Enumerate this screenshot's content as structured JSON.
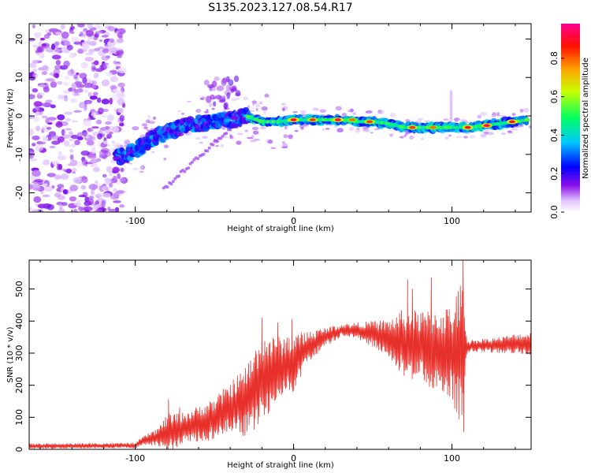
{
  "figure": {
    "title": "S135.2023.127.08.54.R17"
  },
  "chart_data": [
    {
      "type": "heatmap",
      "title": "S135.2023.127.08.54.R17",
      "xlabel": "Height of straight line (km)",
      "ylabel": "Frequency (Hz)",
      "xlim": [
        -167,
        150
      ],
      "ylim": [
        -25,
        24
      ],
      "x_ticks": [
        -100,
        0,
        100
      ],
      "x_tick_labels": [
        "-100",
        "0",
        "100"
      ],
      "y_ticks": [
        -20,
        -10,
        0,
        10,
        20
      ],
      "y_tick_labels": [
        "-20",
        "-10",
        "0",
        "10",
        "20"
      ],
      "colorbar": {
        "label": "Normalized spectral amplitude",
        "ticks": [
          0.0,
          0.2,
          0.4,
          0.6,
          0.8
        ],
        "tick_labels": [
          "0.0",
          "0.2",
          "0.4",
          "0.6",
          "0.8"
        ],
        "range": [
          0,
          0.98
        ],
        "colormap": [
          "#ffffff",
          "#d9b3ff",
          "#7a00e0",
          "#0000ff",
          "#00c8ff",
          "#00ff40",
          "#f0ff00",
          "#ff8000",
          "#ff0000",
          "#ff0080"
        ]
      },
      "ridge": [
        {
          "x": -110,
          "y": -10.5
        },
        {
          "x": -100,
          "y": -9
        },
        {
          "x": -90,
          "y": -6
        },
        {
          "x": -80,
          "y": -4
        },
        {
          "x": -70,
          "y": -3
        },
        {
          "x": -60,
          "y": -2
        },
        {
          "x": -50,
          "y": -1.5
        },
        {
          "x": -40,
          "y": -1
        },
        {
          "x": -30,
          "y": 0
        },
        {
          "x": -20,
          "y": -1.5
        },
        {
          "x": -10,
          "y": -1.5
        },
        {
          "x": 0,
          "y": -1
        },
        {
          "x": 10,
          "y": -1
        },
        {
          "x": 20,
          "y": -1
        },
        {
          "x": 30,
          "y": -1
        },
        {
          "x": 40,
          "y": -1.5
        },
        {
          "x": 50,
          "y": -1.5
        },
        {
          "x": 60,
          "y": -2
        },
        {
          "x": 70,
          "y": -3
        },
        {
          "x": 80,
          "y": -3
        },
        {
          "x": 90,
          "y": -3
        },
        {
          "x": 100,
          "y": -3
        },
        {
          "x": 110,
          "y": -3
        },
        {
          "x": 120,
          "y": -2.5
        },
        {
          "x": 130,
          "y": -2
        },
        {
          "x": 140,
          "y": -1.5
        },
        {
          "x": 148,
          "y": -1
        }
      ],
      "ridge_peaks": [
        {
          "x": 0,
          "y": -1,
          "v": 0.9
        },
        {
          "x": 12,
          "y": -1,
          "v": 0.85
        },
        {
          "x": 28,
          "y": -1,
          "v": 0.9
        },
        {
          "x": 37,
          "y": -1,
          "v": 0.8
        },
        {
          "x": 48,
          "y": -1.5,
          "v": 0.85
        },
        {
          "x": 75,
          "y": -3,
          "v": 0.85
        },
        {
          "x": 88,
          "y": -3,
          "v": 0.8
        },
        {
          "x": 110,
          "y": -3,
          "v": 0.9
        },
        {
          "x": 122,
          "y": -2.5,
          "v": 0.95
        },
        {
          "x": 138,
          "y": -1.5,
          "v": 0.9
        }
      ]
    },
    {
      "type": "line",
      "xlabel": "Height of straight line (km)",
      "ylabel": "SNR (10 * v/v)",
      "xlim": [
        -167,
        150
      ],
      "ylim": [
        0,
        590
      ],
      "x_ticks": [
        -100,
        0,
        100
      ],
      "x_tick_labels": [
        "-100",
        "0",
        "100"
      ],
      "y_ticks": [
        0,
        100,
        200,
        300,
        400,
        500
      ],
      "y_tick_labels": [
        "0",
        "100",
        "200",
        "300",
        "400",
        "500"
      ],
      "color": "#e8302a",
      "envelope": [
        {
          "x": -167,
          "mean": 10,
          "amp": 8
        },
        {
          "x": -100,
          "mean": 12,
          "amp": 8
        },
        {
          "x": -95,
          "mean": 25,
          "amp": 15
        },
        {
          "x": -85,
          "mean": 40,
          "amp": 30
        },
        {
          "x": -80,
          "mean": 50,
          "amp": 60
        },
        {
          "x": -70,
          "mean": 65,
          "amp": 50
        },
        {
          "x": -60,
          "mean": 80,
          "amp": 55
        },
        {
          "x": -50,
          "mean": 95,
          "amp": 65
        },
        {
          "x": -40,
          "mean": 130,
          "amp": 80
        },
        {
          "x": -30,
          "mean": 150,
          "amp": 110
        },
        {
          "x": -20,
          "mean": 220,
          "amp": 140
        },
        {
          "x": -10,
          "mean": 250,
          "amp": 100
        },
        {
          "x": 0,
          "mean": 270,
          "amp": 90
        },
        {
          "x": 10,
          "mean": 320,
          "amp": 50
        },
        {
          "x": 20,
          "mean": 350,
          "amp": 30
        },
        {
          "x": 30,
          "mean": 370,
          "amp": 20
        },
        {
          "x": 40,
          "mean": 370,
          "amp": 25
        },
        {
          "x": 50,
          "mean": 360,
          "amp": 40
        },
        {
          "x": 60,
          "mean": 345,
          "amp": 60
        },
        {
          "x": 70,
          "mean": 330,
          "amp": 110
        },
        {
          "x": 80,
          "mean": 320,
          "amp": 110
        },
        {
          "x": 90,
          "mean": 310,
          "amp": 130
        },
        {
          "x": 100,
          "mean": 300,
          "amp": 150
        },
        {
          "x": 106,
          "mean": 300,
          "amp": 230
        },
        {
          "x": 110,
          "mean": 320,
          "amp": 20
        },
        {
          "x": 120,
          "mean": 325,
          "amp": 20
        },
        {
          "x": 130,
          "mean": 325,
          "amp": 25
        },
        {
          "x": 140,
          "mean": 330,
          "amp": 30
        },
        {
          "x": 150,
          "mean": 330,
          "amp": 35
        }
      ],
      "spikes": [
        {
          "x": -79,
          "y": 155
        },
        {
          "x": -72,
          "y": 130
        },
        {
          "x": -38,
          "y": 185
        },
        {
          "x": -22,
          "y": 275
        },
        {
          "x": -20,
          "y": 410
        },
        {
          "x": -10,
          "y": 395
        },
        {
          "x": -1,
          "y": 405
        },
        {
          "x": 72,
          "y": 530
        },
        {
          "x": 75,
          "y": 500
        },
        {
          "x": 87,
          "y": 535
        },
        {
          "x": 107,
          "y": 590
        },
        {
          "x": 107.5,
          "y": 55
        }
      ]
    }
  ]
}
